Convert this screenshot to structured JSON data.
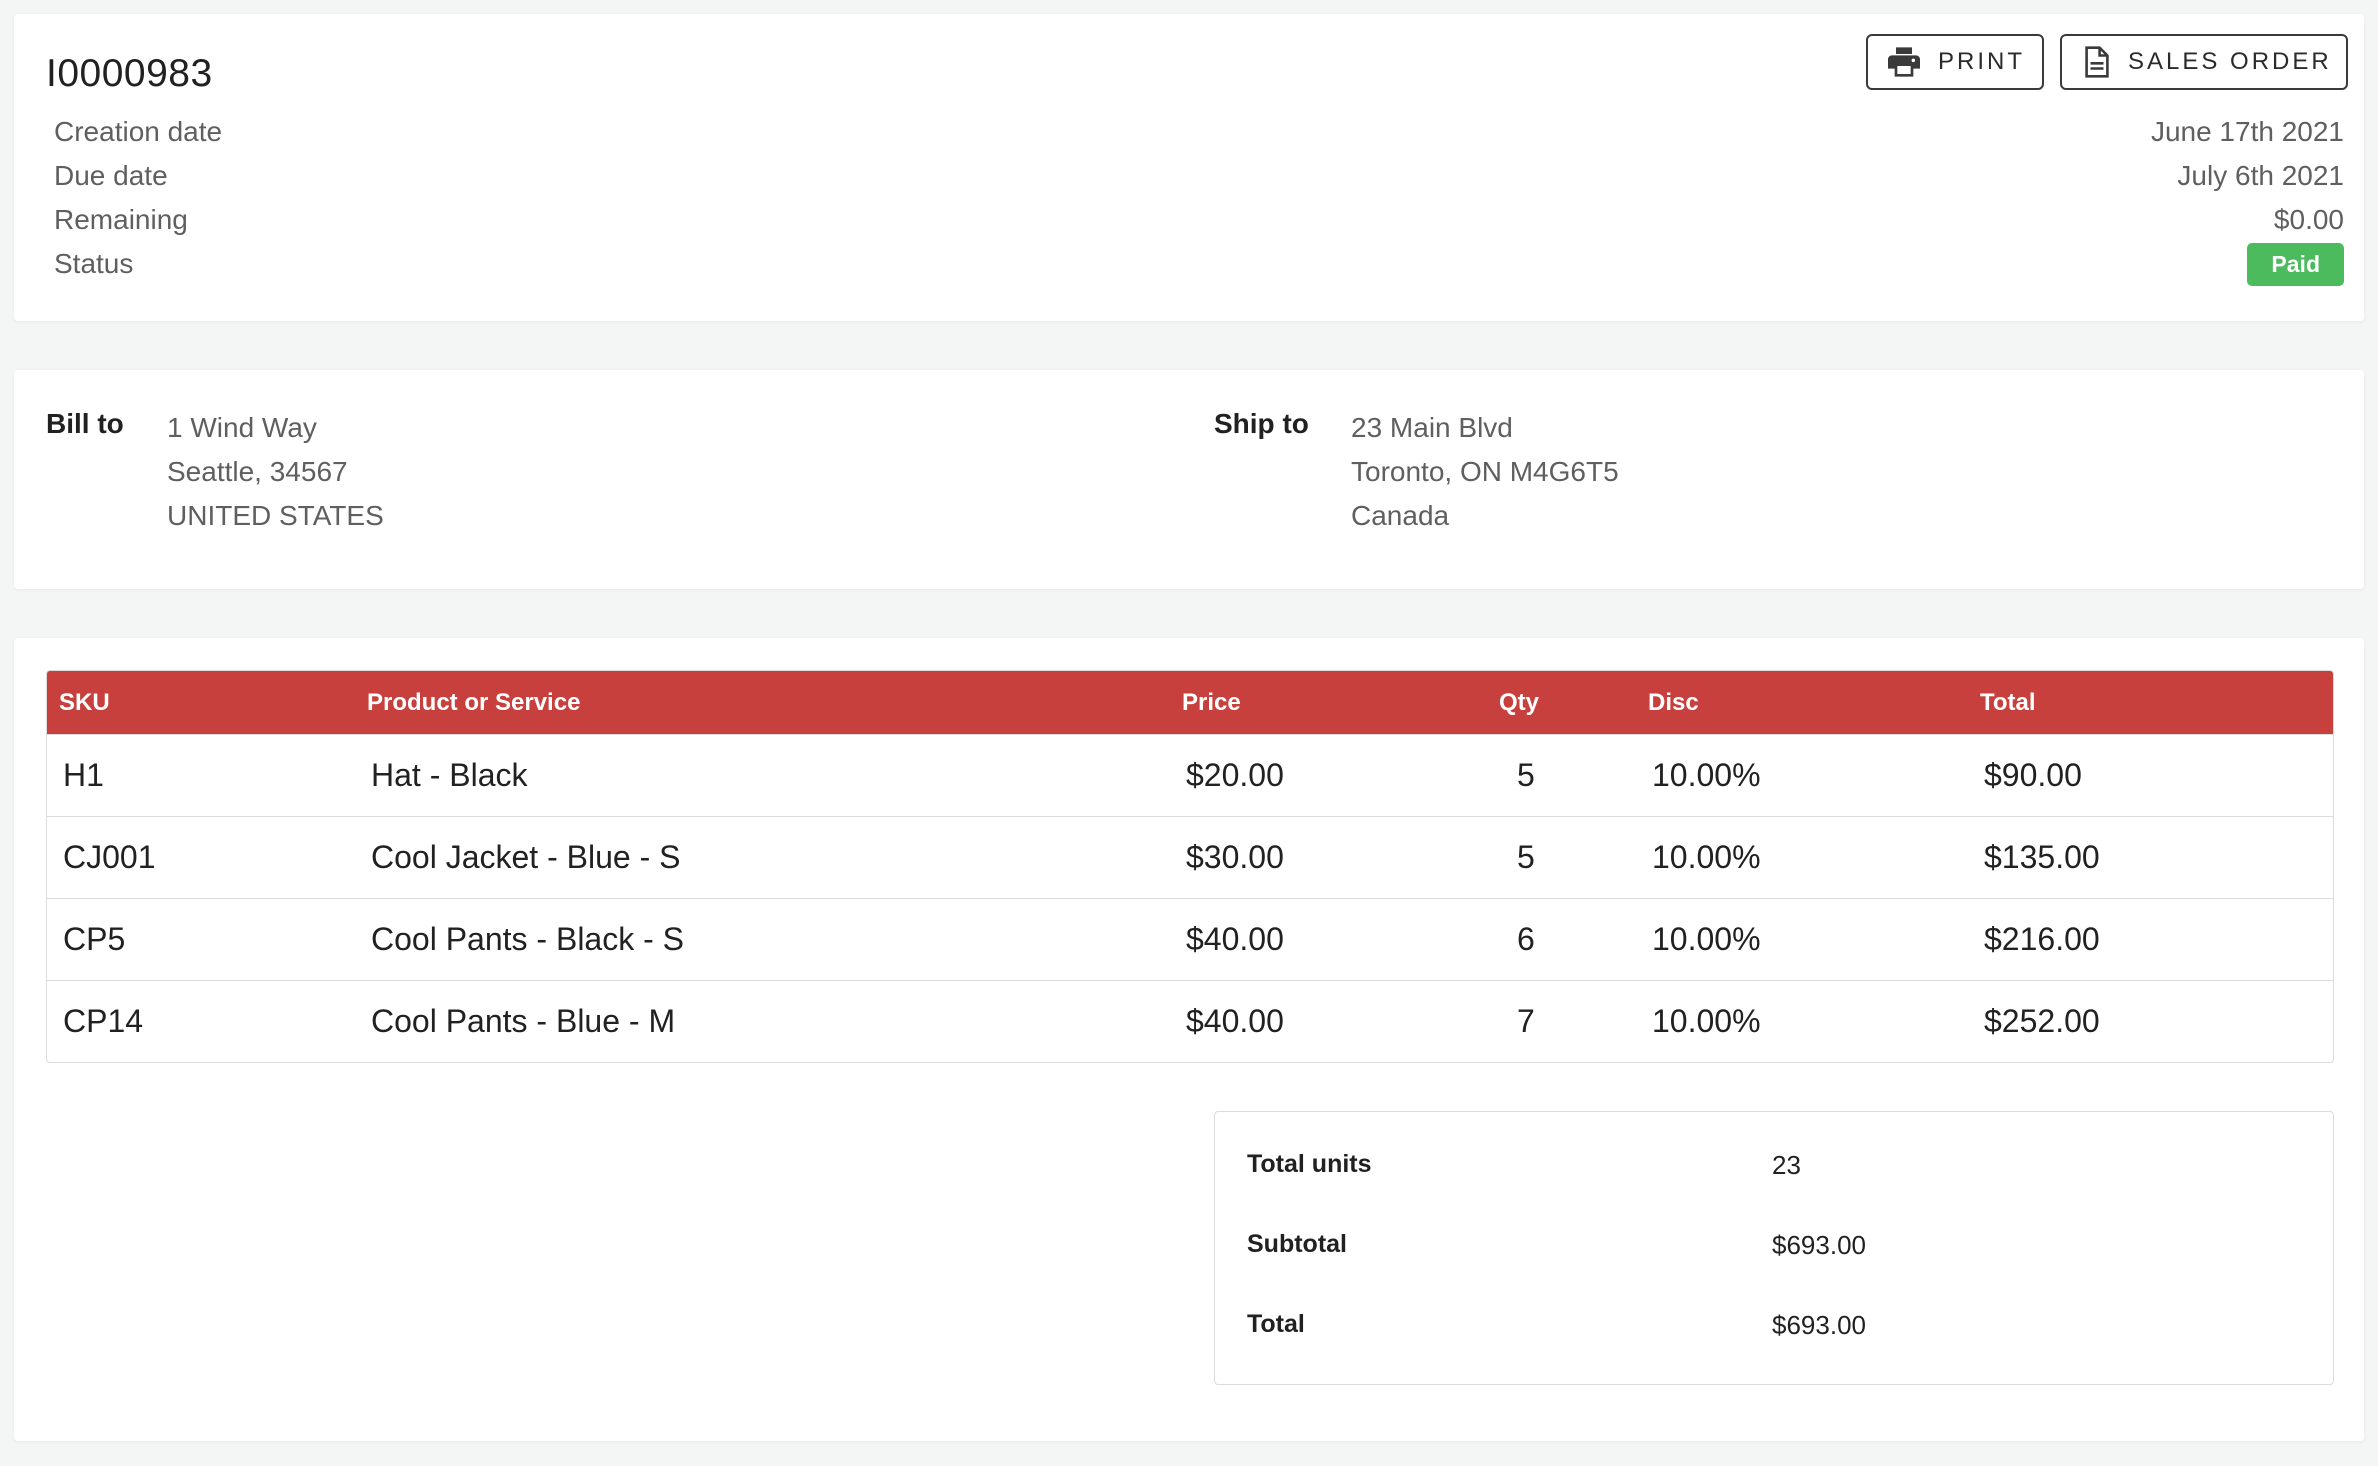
{
  "invoice": {
    "number": "I0000983",
    "actions": {
      "print_label": "PRINT",
      "sales_order_label": "SALES ORDER"
    },
    "meta": [
      {
        "label": "Creation date",
        "value": "June 17th 2021"
      },
      {
        "label": "Due date",
        "value": "July 6th 2021"
      },
      {
        "label": "Remaining",
        "value": "$0.00"
      }
    ],
    "status": {
      "label": "Status",
      "value": "Paid",
      "color": "#4cbb5e"
    }
  },
  "addresses": {
    "bill_to": {
      "label": "Bill to",
      "line1": "1 Wind Way",
      "line2": "Seattle, 34567",
      "line3": "UNITED STATES"
    },
    "ship_to": {
      "label": "Ship to",
      "line1": "23 Main Blvd",
      "line2": "Toronto, ON M4G6T5",
      "line3": "Canada"
    }
  },
  "table": {
    "header_color": "#c8403d",
    "columns": {
      "sku": "SKU",
      "product": "Product or Service",
      "price": "Price",
      "qty": "Qty",
      "disc": "Disc",
      "total": "Total"
    },
    "rows": [
      {
        "sku": "H1",
        "product": "Hat - Black",
        "price": "$20.00",
        "qty": "5",
        "disc": "10.00%",
        "total": "$90.00"
      },
      {
        "sku": "CJ001",
        "product": "Cool Jacket - Blue - S",
        "price": "$30.00",
        "qty": "5",
        "disc": "10.00%",
        "total": "$135.00"
      },
      {
        "sku": "CP5",
        "product": "Cool Pants - Black - S",
        "price": "$40.00",
        "qty": "6",
        "disc": "10.00%",
        "total": "$216.00"
      },
      {
        "sku": "CP14",
        "product": "Cool Pants - Blue - M",
        "price": "$40.00",
        "qty": "7",
        "disc": "10.00%",
        "total": "$252.00"
      }
    ]
  },
  "summary": {
    "total_units": {
      "label": "Total units",
      "value": "23"
    },
    "subtotal": {
      "label": "Subtotal",
      "value": "$693.00"
    },
    "total": {
      "label": "Total",
      "value": "$693.00"
    }
  },
  "icons": {
    "print": "printer-icon",
    "sales_order": "document-icon"
  }
}
